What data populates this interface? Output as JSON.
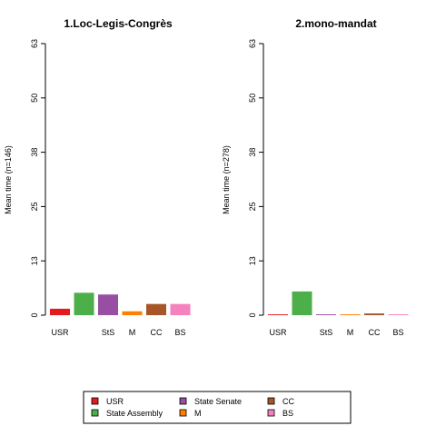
{
  "legend": {
    "entries": [
      {
        "label": "USR",
        "color": "#E41A1C"
      },
      {
        "label": "State Assembly",
        "color": "#4DAF4A"
      },
      {
        "label": "State Senate",
        "color": "#984EA3"
      },
      {
        "label": "M",
        "color": "#FF7F00"
      },
      {
        "label": "CC",
        "color": "#A65628"
      },
      {
        "label": "BS",
        "color": "#F781BF"
      }
    ]
  },
  "chart_data": [
    {
      "type": "bar",
      "title": "1.Loc-Legis-Congrès",
      "ylabel": "Mean time (n=146)",
      "ylim": [
        0,
        63
      ],
      "yticks": [
        "0",
        "13",
        "25",
        "38",
        "50",
        "63"
      ],
      "ytick_values": [
        0,
        12.6,
        25.2,
        37.8,
        50.4,
        63
      ],
      "categories": [
        "USR",
        "",
        "StS",
        "M",
        "CC",
        "BS"
      ],
      "values": [
        1.5,
        5.2,
        4.8,
        0.9,
        2.6,
        2.6
      ],
      "colors": [
        "#E41A1C",
        "#4DAF4A",
        "#984EA3",
        "#FF7F00",
        "#A65628",
        "#F781BF"
      ],
      "grid": false
    },
    {
      "type": "bar",
      "title": "2.mono-mandat",
      "ylabel": "Mean time (n=278)",
      "ylim": [
        0,
        63
      ],
      "yticks": [
        "0",
        "13",
        "25",
        "38",
        "50",
        "63"
      ],
      "ytick_values": [
        0,
        12.6,
        25.2,
        37.8,
        50.4,
        63
      ],
      "categories": [
        "USR",
        "",
        "StS",
        "M",
        "CC",
        "BS"
      ],
      "values": [
        0.2,
        5.5,
        0.2,
        0.2,
        0.4,
        0.2
      ],
      "colors": [
        "#E41A1C",
        "#4DAF4A",
        "#984EA3",
        "#FF7F00",
        "#A65628",
        "#F781BF"
      ],
      "grid": false
    }
  ]
}
